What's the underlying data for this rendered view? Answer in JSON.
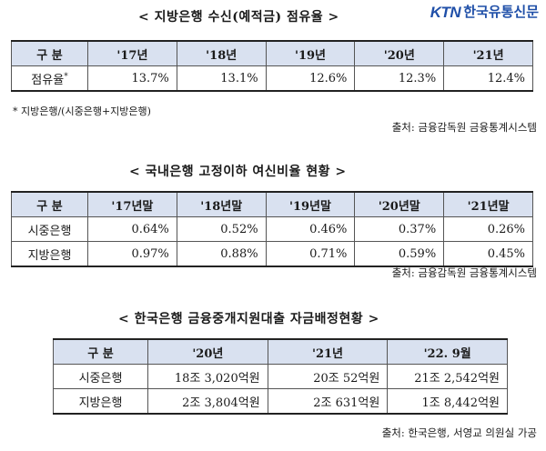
{
  "logo": {
    "mark": "KTN",
    "name": "한국유통신문"
  },
  "table1": {
    "title": "< 지방은행 수신(예적금) 점유율 >",
    "header": [
      "구 분",
      "'17년",
      "'18년",
      "'19년",
      "'20년",
      "'21년"
    ],
    "rows": [
      {
        "label": "점유율",
        "marker": "*",
        "values": [
          "13.7%",
          "13.1%",
          "12.6%",
          "12.3%",
          "12.4%"
        ]
      }
    ],
    "footnote": "* 지방은행/(시중은행+지방은행)",
    "source": "출처: 금융감독원 금융통계시스템"
  },
  "table2": {
    "title": "< 국내은행 고정이하 여신비율 현황 >",
    "header": [
      "구 분",
      "'17년말",
      "'18년말",
      "'19년말",
      "'20년말",
      "'21년말"
    ],
    "rows": [
      {
        "label": "시중은행",
        "values": [
          "0.64%",
          "0.52%",
          "0.46%",
          "0.37%",
          "0.26%"
        ]
      },
      {
        "label": "지방은행",
        "values": [
          "0.97%",
          "0.88%",
          "0.71%",
          "0.59%",
          "0.45%"
        ]
      }
    ],
    "source": "출처: 금융감독원 금융통계시스템"
  },
  "table3": {
    "title": "< 한국은행 금융중개지원대출 자금배정현황 >",
    "header": [
      "구 분",
      "'20년",
      "'21년",
      "'22. 9월"
    ],
    "rows": [
      {
        "label": "시중은행",
        "values": [
          "18조 3,020억원",
          "20조 52억원",
          "21조 2,542억원"
        ]
      },
      {
        "label": "지방은행",
        "values": [
          "2조 3,804억원",
          "2조 631억원",
          "1조 8,442억원"
        ]
      }
    ],
    "source": "출처: 한국은행, 서영교 의원실 가공"
  }
}
